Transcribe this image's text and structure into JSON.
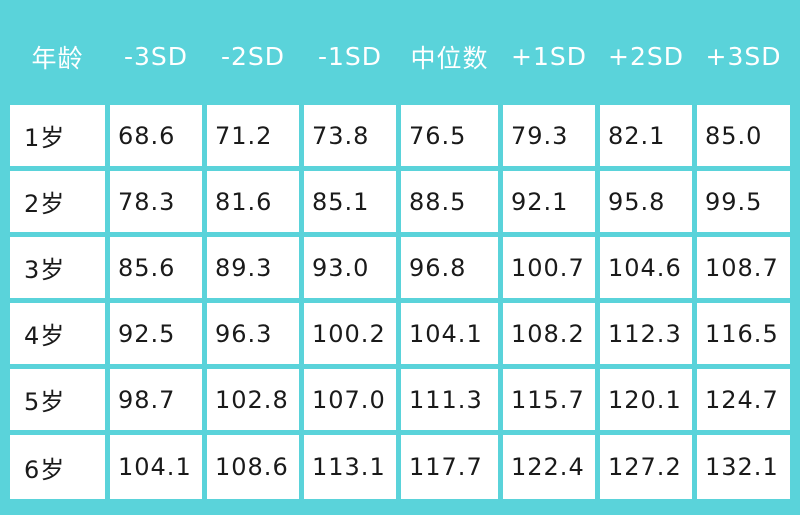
{
  "table": {
    "headers": [
      "年龄",
      "-3SD",
      "-2SD",
      "-1SD",
      "中位数",
      "+1SD",
      "+2SD",
      "+3SD"
    ],
    "rows": [
      {
        "age": "1岁",
        "values": [
          "68.6",
          "71.2",
          "73.8",
          "76.5",
          "79.3",
          "82.1",
          "85.0"
        ]
      },
      {
        "age": "2岁",
        "values": [
          "78.3",
          "81.6",
          "85.1",
          "88.5",
          "92.1",
          "95.8",
          "99.5"
        ]
      },
      {
        "age": "3岁",
        "values": [
          "85.6",
          "89.3",
          "93.0",
          "96.8",
          "100.7",
          "104.6",
          "108.7"
        ]
      },
      {
        "age": "4岁",
        "values": [
          "92.5",
          "96.3",
          "100.2",
          "104.1",
          "108.2",
          "112.3",
          "116.5"
        ]
      },
      {
        "age": "5岁",
        "values": [
          "98.7",
          "102.8",
          "107.0",
          "111.3",
          "115.7",
          "120.1",
          "124.7"
        ]
      },
      {
        "age": "6岁",
        "values": [
          "104.1",
          "108.6",
          "113.1",
          "117.7",
          "122.4",
          "127.2",
          "132.1"
        ]
      }
    ]
  },
  "colors": {
    "background": "#5ad3da",
    "header_text": "#ffffff",
    "cell_background": "#ffffff",
    "cell_text": "#1a1a1a"
  }
}
